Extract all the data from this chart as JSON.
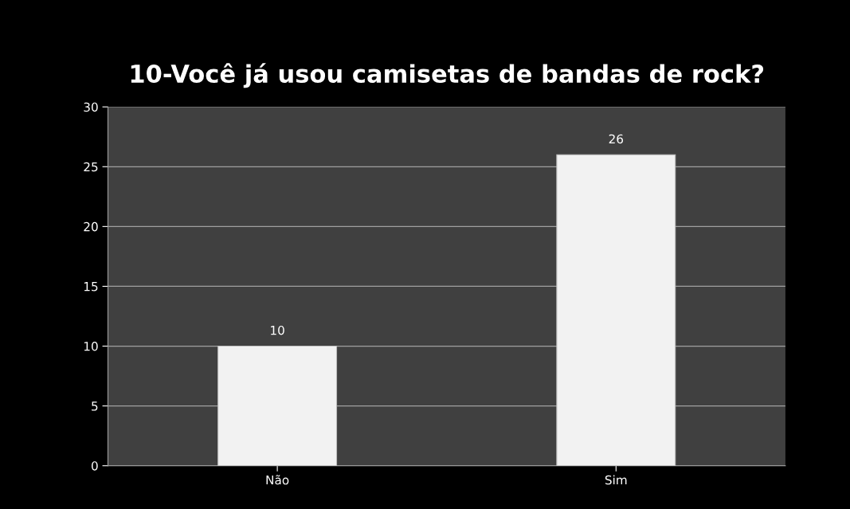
{
  "chart_data": {
    "type": "bar",
    "title": "10-Você já usou camisetas de bandas de rock?",
    "categories": [
      "Não",
      "Sim"
    ],
    "values": [
      10,
      26
    ],
    "color": "#f2f2f2",
    "ylim": [
      0,
      30
    ],
    "yticks": [
      0,
      5,
      10,
      15,
      20,
      25,
      30
    ],
    "grid": "y",
    "data_labels": true
  }
}
